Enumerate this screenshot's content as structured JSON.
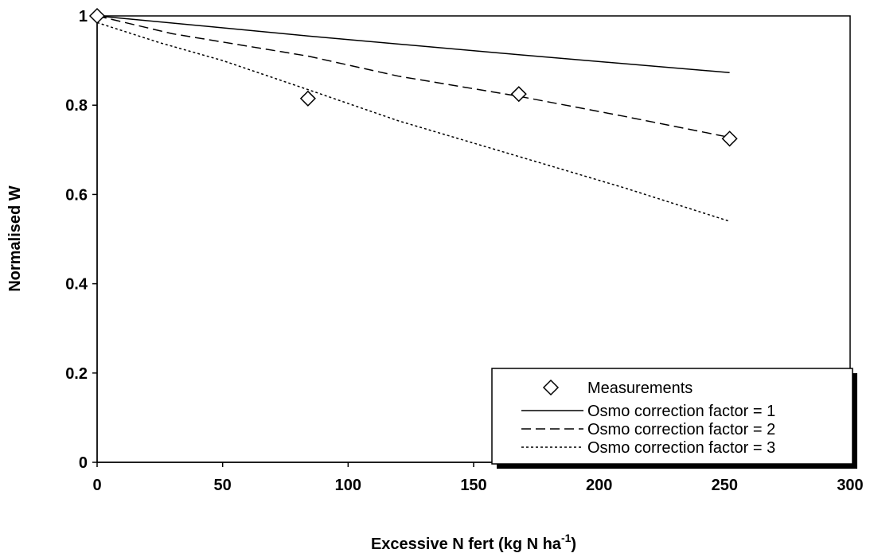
{
  "chart_data": {
    "type": "line",
    "title": "",
    "xlabel": "Excessive N fert (kg N ha",
    "xlabel_superscript": "-1",
    "xlabel_suffix": ")",
    "ylabel": "Normalised W",
    "xlim": [
      0,
      300
    ],
    "ylim": [
      0,
      1
    ],
    "xticks": [
      0,
      50,
      100,
      150,
      200,
      250,
      300
    ],
    "xtick_labels": [
      "0",
      "50",
      "100",
      "150",
      "200",
      "250",
      "300"
    ],
    "yticks": [
      0,
      0.2,
      0.4,
      0.6,
      0.8,
      1
    ],
    "ytick_labels": [
      "0",
      "0.2",
      "0.4",
      "0.6",
      "0.8",
      "1"
    ],
    "grid": false,
    "legend_position": "bottom-right",
    "series": [
      {
        "name": "Measurements",
        "kind": "markers",
        "marker": "diamond",
        "x": [
          0,
          84,
          168,
          252
        ],
        "y": [
          1.0,
          0.815,
          0.825,
          0.725
        ]
      },
      {
        "name": "Osmo correction factor = 1",
        "kind": "line",
        "dash": "solid",
        "x": [
          0,
          84,
          168,
          252
        ],
        "y": [
          1.0,
          0.955,
          0.913,
          0.873
        ]
      },
      {
        "name": "Osmo correction factor = 2",
        "kind": "line",
        "dash": "dashed",
        "x": [
          0,
          30,
          84,
          120,
          168,
          210,
          252
        ],
        "y": [
          1.0,
          0.96,
          0.91,
          0.865,
          0.82,
          0.775,
          0.728
        ]
      },
      {
        "name": "Osmo correction factor = 3",
        "kind": "line",
        "dash": "dotted",
        "x": [
          0,
          25,
          50,
          84,
          120,
          168,
          210,
          252
        ],
        "y": [
          0.985,
          0.94,
          0.9,
          0.835,
          0.765,
          0.685,
          0.615,
          0.54
        ]
      }
    ]
  }
}
